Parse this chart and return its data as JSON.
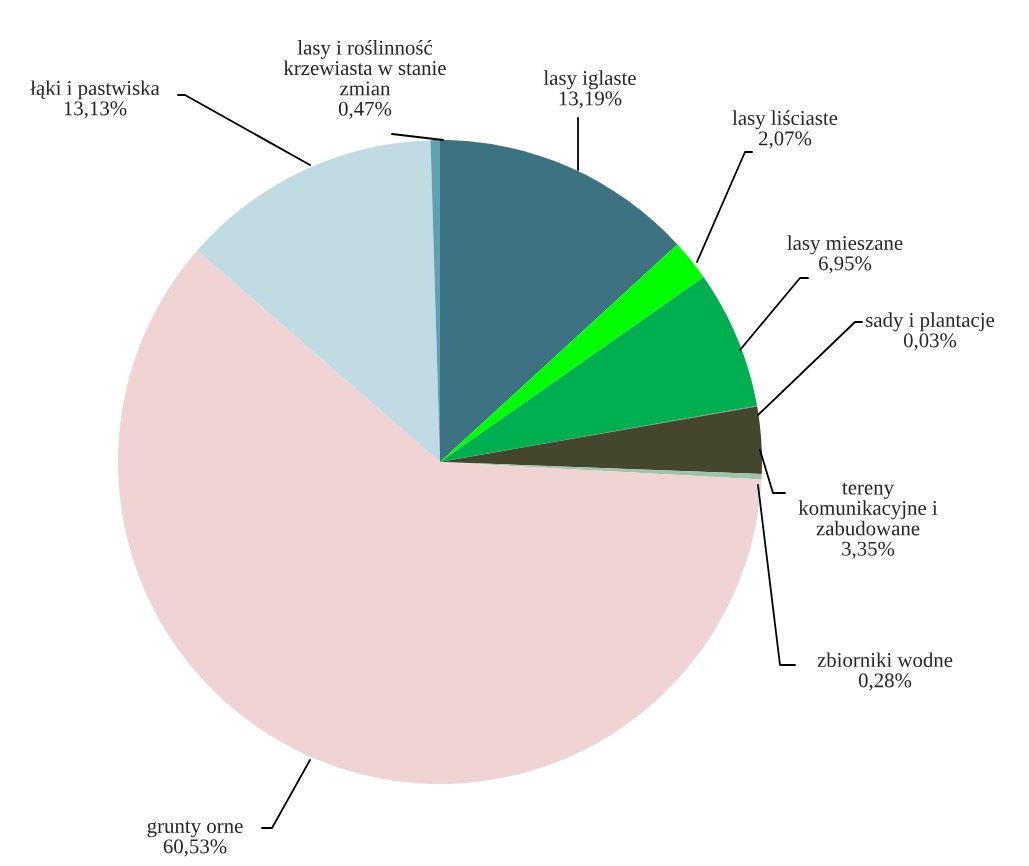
{
  "chart_data": {
    "type": "pie",
    "categories": [
      "lasy iglaste",
      "lasy liściaste",
      "lasy mieszane",
      "sady i plantacje",
      "tereny\nkomunikacyjne i\nzabudowane",
      "zbiorniki wodne",
      "grunty orne",
      "łąki i pastwiska",
      "lasy i roślinność\nkrzewiasta w stanie\nzmian"
    ],
    "values": [
      13.19,
      2.07,
      6.95,
      0.03,
      3.35,
      0.28,
      60.53,
      13.13,
      0.47
    ],
    "value_labels": [
      "13,19%",
      "2,07%",
      "6,95%",
      "0,03%",
      "3,35%",
      "0,28%",
      "60,53%",
      "13,13%",
      "0,47%"
    ],
    "colors": [
      "#3d7282",
      "#00ff00",
      "#00b050",
      "#7f7f7f",
      "#44472e",
      "#9fc4aa",
      "#f0d4d4",
      "#c1dbe2",
      "#5fa0b5"
    ],
    "legend": false
  }
}
